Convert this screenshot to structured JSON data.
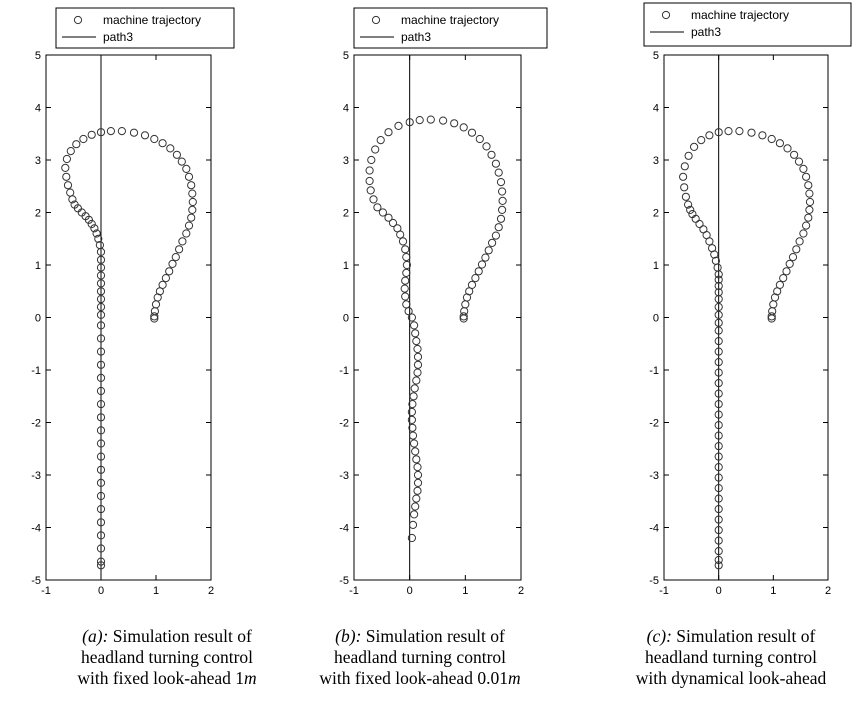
{
  "chart_data": [
    {
      "type": "scatter",
      "label": "(a):",
      "caption_lines": [
        "Simulation result of",
        "headland turning control",
        "with fixed look-ahead 1"
      ],
      "caption_unit": "m",
      "xlim": [
        -1,
        2
      ],
      "ylim": [
        -5,
        5
      ],
      "xticks": [
        "-1",
        "0",
        "1",
        "2"
      ],
      "yticks": [
        "-5",
        "-4",
        "-3",
        "-2",
        "-1",
        "0",
        "1",
        "2",
        "3",
        "4",
        "5"
      ],
      "legend": {
        "placement": "top",
        "entries": [
          "machine trajectory",
          "path3"
        ]
      },
      "grid": false,
      "series": [
        {
          "name": "machine trajectory",
          "marker": "circle",
          "x": [
            0,
            0,
            0,
            0,
            0,
            0,
            0,
            0,
            0,
            0,
            0,
            0,
            0,
            0,
            0,
            0,
            0,
            0,
            0,
            0,
            0,
            0,
            0,
            0,
            0,
            0,
            0,
            0,
            0,
            -0.02,
            -0.05,
            -0.08,
            -0.12,
            -0.17,
            -0.22,
            -0.28,
            -0.35,
            -0.42,
            -0.48,
            -0.52,
            -0.56,
            -0.6,
            -0.63,
            -0.65,
            -0.62,
            -0.55,
            -0.45,
            -0.32,
            -0.17,
            0,
            0.18,
            0.38,
            0.6,
            0.8,
            0.97,
            1.12,
            1.26,
            1.38,
            1.47,
            1.55,
            1.6,
            1.64,
            1.66,
            1.67,
            1.66,
            1.64,
            1.6,
            1.55,
            1.48,
            1.42,
            1.36,
            1.3,
            1.24,
            1.18,
            1.12,
            1.07,
            1.03,
            1,
            0.98,
            0.97,
            0.97
          ],
          "y": [
            -4.72,
            -4.65,
            -4.4,
            -4.15,
            -3.9,
            -3.65,
            -3.4,
            -3.15,
            -2.9,
            -2.65,
            -2.4,
            -2.15,
            -1.9,
            -1.65,
            -1.4,
            -1.15,
            -0.9,
            -0.65,
            -0.4,
            -0.15,
            0.05,
            0.2,
            0.35,
            0.5,
            0.65,
            0.8,
            0.95,
            1.1,
            1.25,
            1.38,
            1.5,
            1.6,
            1.7,
            1.78,
            1.86,
            1.93,
            2,
            2.08,
            2.15,
            2.25,
            2.38,
            2.52,
            2.68,
            2.85,
            3.02,
            3.17,
            3.3,
            3.4,
            3.48,
            3.53,
            3.55,
            3.55,
            3.52,
            3.47,
            3.4,
            3.32,
            3.22,
            3.1,
            2.97,
            2.83,
            2.68,
            2.52,
            2.36,
            2.2,
            2.05,
            1.9,
            1.75,
            1.6,
            1.45,
            1.3,
            1.15,
            1.02,
            0.88,
            0.75,
            0.62,
            0.5,
            0.38,
            0.25,
            0.12,
            0.02,
            -0.02
          ]
        },
        {
          "name": "path3",
          "x": [
            0,
            0
          ],
          "y": [
            -5,
            5
          ]
        }
      ]
    },
    {
      "type": "scatter",
      "label": "(b):",
      "caption_lines": [
        "Simulation result of",
        "headland turning control",
        "with fixed look-ahead 0.01"
      ],
      "caption_unit": "m",
      "xlim": [
        -1,
        2
      ],
      "ylim": [
        -5,
        5
      ],
      "xticks": [
        "-1",
        "0",
        "1",
        "2"
      ],
      "yticks": [
        "-5",
        "-4",
        "-3",
        "-2",
        "-1",
        "0",
        "1",
        "2",
        "3",
        "4",
        "5"
      ],
      "legend": {
        "placement": "top",
        "entries": [
          "machine trajectory",
          "path3"
        ]
      },
      "grid": false,
      "series": [
        {
          "name": "machine trajectory",
          "marker": "circle",
          "x": [
            0.04,
            0.06,
            0.08,
            0.1,
            0.12,
            0.14,
            0.15,
            0.15,
            0.14,
            0.12,
            0.1,
            0.08,
            0.06,
            0.05,
            0.04,
            0.04,
            0.05,
            0.07,
            0.09,
            0.12,
            0.14,
            0.15,
            0.15,
            0.14,
            0.12,
            0.1,
            0.08,
            0.04,
            -0.02,
            -0.06,
            -0.08,
            -0.09,
            -0.08,
            -0.06,
            -0.05,
            -0.06,
            -0.08,
            -0.12,
            -0.17,
            -0.22,
            -0.3,
            -0.38,
            -0.48,
            -0.58,
            -0.65,
            -0.7,
            -0.72,
            -0.72,
            -0.69,
            -0.62,
            -0.52,
            -0.38,
            -0.2,
            0,
            0.18,
            0.38,
            0.6,
            0.8,
            0.97,
            1.12,
            1.26,
            1.38,
            1.47,
            1.55,
            1.6,
            1.64,
            1.66,
            1.67,
            1.66,
            1.64,
            1.6,
            1.55,
            1.48,
            1.42,
            1.36,
            1.3,
            1.24,
            1.18,
            1.12,
            1.07,
            1.03,
            1,
            0.98,
            0.97,
            0.97
          ],
          "y": [
            -4.2,
            -3.95,
            -3.75,
            -3.6,
            -3.45,
            -3.3,
            -3.15,
            -3,
            -2.85,
            -2.7,
            -2.55,
            -2.4,
            -2.25,
            -2.1,
            -1.95,
            -1.8,
            -1.65,
            -1.5,
            -1.35,
            -1.2,
            -1.05,
            -0.9,
            -0.75,
            -0.6,
            -0.45,
            -0.3,
            -0.15,
            0,
            0.12,
            0.25,
            0.4,
            0.55,
            0.7,
            0.85,
            1,
            1.15,
            1.3,
            1.45,
            1.58,
            1.7,
            1.8,
            1.9,
            2,
            2.1,
            2.25,
            2.42,
            2.6,
            2.8,
            3,
            3.2,
            3.38,
            3.53,
            3.65,
            3.72,
            3.76,
            3.77,
            3.75,
            3.7,
            3.62,
            3.52,
            3.4,
            3.26,
            3.1,
            2.93,
            2.76,
            2.58,
            2.4,
            2.22,
            2.05,
            1.88,
            1.72,
            1.56,
            1.42,
            1.28,
            1.14,
            1.01,
            0.88,
            0.75,
            0.62,
            0.5,
            0.38,
            0.25,
            0.12,
            0.02,
            -0.02
          ]
        },
        {
          "name": "path3",
          "x": [
            0,
            0
          ],
          "y": [
            -5,
            5
          ]
        }
      ]
    },
    {
      "type": "scatter",
      "label": "(c):",
      "caption_lines": [
        "Simulation result of",
        "headland turning control",
        "with dynamical look-ahead"
      ],
      "caption_unit": "",
      "xlim": [
        -1,
        2
      ],
      "ylim": [
        -5,
        5
      ],
      "xticks": [
        "-1",
        "0",
        "1",
        "2"
      ],
      "yticks": [
        "-5",
        "-4",
        "-3",
        "-2",
        "-1",
        "0",
        "1",
        "2",
        "3",
        "4",
        "5"
      ],
      "legend": {
        "placement": "top",
        "entries": [
          "machine trajectory",
          "path3"
        ]
      },
      "grid": false,
      "series": [
        {
          "name": "machine trajectory",
          "marker": "circle",
          "x": [
            0,
            0,
            0,
            0,
            0,
            0,
            0,
            0,
            0,
            0,
            0,
            0,
            0,
            0,
            0,
            0,
            0,
            0,
            0,
            0,
            0,
            0,
            0,
            0,
            0,
            0,
            0,
            0,
            0,
            0,
            0,
            0,
            -0.02,
            -0.05,
            -0.08,
            -0.12,
            -0.17,
            -0.22,
            -0.28,
            -0.35,
            -0.42,
            -0.48,
            -0.52,
            -0.56,
            -0.6,
            -0.63,
            -0.65,
            -0.62,
            -0.55,
            -0.45,
            -0.32,
            -0.17,
            0,
            0.18,
            0.38,
            0.6,
            0.8,
            0.97,
            1.12,
            1.26,
            1.38,
            1.47,
            1.55,
            1.6,
            1.64,
            1.66,
            1.67,
            1.66,
            1.64,
            1.6,
            1.55,
            1.48,
            1.42,
            1.36,
            1.3,
            1.24,
            1.18,
            1.12,
            1.07,
            1.03,
            1,
            0.98,
            0.97,
            0.97
          ],
          "y": [
            -4.72,
            -4.62,
            -4.45,
            -4.25,
            -4.05,
            -3.85,
            -3.65,
            -3.45,
            -3.25,
            -3.05,
            -2.85,
            -2.65,
            -2.45,
            -2.25,
            -2.05,
            -1.85,
            -1.65,
            -1.45,
            -1.25,
            -1.05,
            -0.85,
            -0.65,
            -0.45,
            -0.25,
            -0.1,
            0.05,
            0.2,
            0.35,
            0.48,
            0.6,
            0.72,
            0.82,
            0.95,
            1.08,
            1.2,
            1.32,
            1.45,
            1.57,
            1.68,
            1.78,
            1.88,
            1.97,
            2.05,
            2.15,
            2.3,
            2.48,
            2.68,
            2.88,
            3.08,
            3.25,
            3.38,
            3.47,
            3.53,
            3.55,
            3.55,
            3.52,
            3.47,
            3.4,
            3.32,
            3.22,
            3.1,
            2.97,
            2.83,
            2.68,
            2.52,
            2.36,
            2.2,
            2.05,
            1.9,
            1.75,
            1.6,
            1.45,
            1.3,
            1.15,
            1.02,
            0.88,
            0.75,
            0.62,
            0.5,
            0.38,
            0.25,
            0.12,
            0.02,
            -0.02
          ]
        },
        {
          "name": "path3",
          "x": [
            0,
            0
          ],
          "y": [
            -5,
            5
          ]
        }
      ]
    }
  ]
}
